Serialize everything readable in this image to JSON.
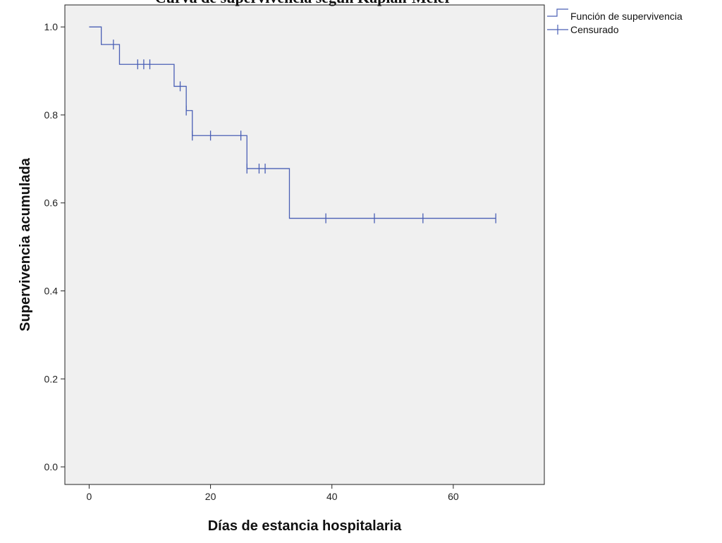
{
  "chart_data": {
    "type": "line",
    "title": "Curva de supervivencia según Kaplan-Meier",
    "xlabel": "Días de estancia hospitalaria",
    "ylabel": "Supervivencia acumulada",
    "xlim": [
      -4,
      75
    ],
    "ylim": [
      -0.04,
      1.05
    ],
    "x_ticks": [
      0,
      20,
      40,
      60
    ],
    "x_tick_labels": [
      "0",
      "20",
      "40",
      "60"
    ],
    "y_ticks": [
      0.0,
      0.2,
      0.4,
      0.6,
      0.8,
      1.0
    ],
    "y_tick_labels": [
      "0.0",
      "0.2",
      "0.4",
      "0.6",
      "0.8",
      "1.0"
    ],
    "grid": false,
    "legend_position": "top-right outside",
    "plot_background": "#f0f0f0",
    "line_color": "#4a5fb5",
    "series": [
      {
        "name": "Función de supervivencia",
        "kind": "step",
        "x": [
          0,
          2,
          5,
          14,
          16,
          17,
          26,
          33,
          67
        ],
        "y": [
          1.0,
          0.96,
          0.915,
          0.865,
          0.81,
          0.753,
          0.678,
          0.565,
          0.565
        ]
      },
      {
        "name": "Censurado",
        "kind": "censor-marks",
        "x": [
          4,
          8,
          9,
          10,
          15,
          16,
          17,
          20,
          25,
          26,
          28,
          29,
          39,
          47,
          55,
          67
        ],
        "y": [
          0.96,
          0.915,
          0.915,
          0.915,
          0.865,
          0.81,
          0.753,
          0.753,
          0.753,
          0.678,
          0.678,
          0.678,
          0.565,
          0.565,
          0.565,
          0.565
        ]
      }
    ]
  }
}
